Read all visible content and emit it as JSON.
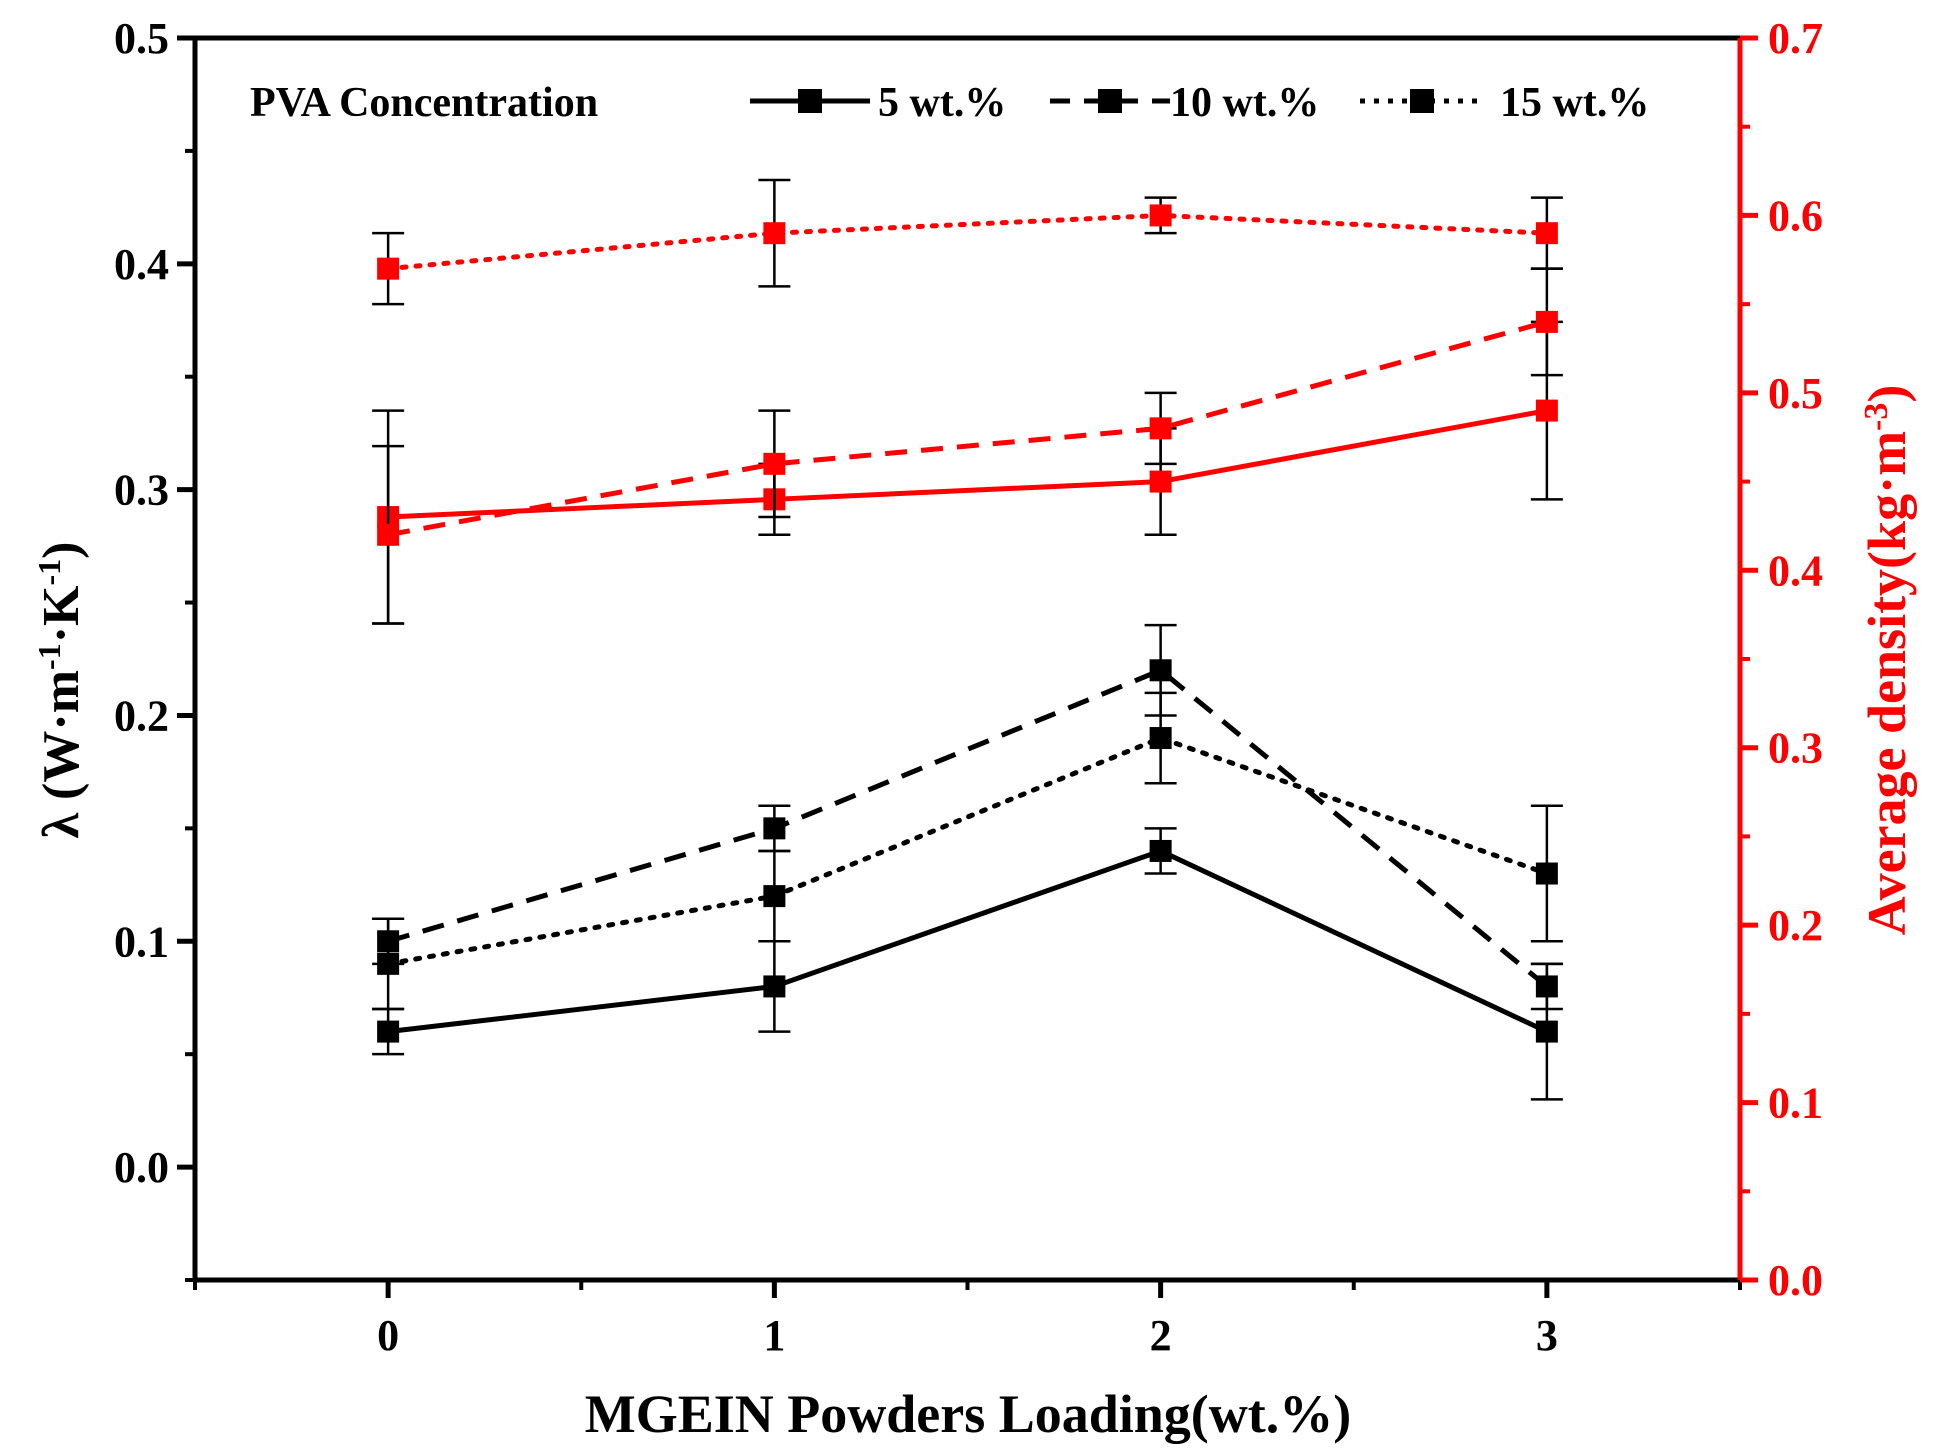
{
  "chart_data": {
    "type": "line",
    "xlabel": "MGEIN Powders Loading(wt.%)",
    "ylabel_left_parts": [
      "λ (W·m",
      "-1",
      "·K",
      "-1",
      ")"
    ],
    "ylabel_right_parts": [
      "Average density(kg·m",
      "-3",
      ")"
    ],
    "x_ticks": [
      0,
      1,
      2,
      3
    ],
    "x_tick_labels": [
      "0",
      "1",
      "2",
      "3"
    ],
    "xlim": [
      -0.5,
      3.5
    ],
    "y_left": {
      "lim": [
        -0.05,
        0.5
      ],
      "ticks": [
        0.0,
        0.1,
        0.2,
        0.3,
        0.4,
        0.5
      ],
      "tick_labels": [
        "0.0",
        "0.1",
        "0.2",
        "0.3",
        "0.4",
        "0.5"
      ]
    },
    "y_right": {
      "lim": [
        0.0,
        0.7
      ],
      "ticks": [
        0.0,
        0.1,
        0.2,
        0.3,
        0.4,
        0.5,
        0.6,
        0.7
      ],
      "tick_labels": [
        "0.0",
        "0.1",
        "0.2",
        "0.3",
        "0.4",
        "0.5",
        "0.6",
        "0.7"
      ]
    },
    "legend": {
      "title": "PVA Concentration",
      "position": "top",
      "entries": [
        {
          "label": "5 wt.%",
          "style": "solid"
        },
        {
          "label": "10 wt.%",
          "style": "dashed"
        },
        {
          "label": "15 wt.%",
          "style": "dotted"
        }
      ]
    },
    "series": [
      {
        "name": "λ 5 wt.%",
        "axis": "left",
        "color": "#000000",
        "style": "solid",
        "x": [
          0,
          1,
          2,
          3
        ],
        "values": [
          0.06,
          0.08,
          0.14,
          0.06
        ],
        "errors": [
          0.01,
          0.02,
          0.01,
          0.03
        ]
      },
      {
        "name": "λ 10 wt.%",
        "axis": "left",
        "color": "#000000",
        "style": "dashed",
        "x": [
          0,
          1,
          2,
          3
        ],
        "values": [
          0.1,
          0.15,
          0.22,
          0.08
        ],
        "errors": [
          0.01,
          0.01,
          0.02,
          0.01
        ]
      },
      {
        "name": "λ 15 wt.%",
        "axis": "left",
        "color": "#000000",
        "style": "dotted",
        "x": [
          0,
          1,
          2,
          3
        ],
        "values": [
          0.09,
          0.12,
          0.19,
          0.13
        ],
        "errors": [
          0.02,
          0.02,
          0.02,
          0.03
        ]
      },
      {
        "name": "Density 5 wt.%",
        "axis": "right",
        "color": "#ff0000",
        "style": "solid",
        "x": [
          0,
          1,
          2,
          3
        ],
        "values": [
          0.43,
          0.44,
          0.45,
          0.49
        ],
        "errors": [
          0.06,
          0.02,
          0.03,
          0.05
        ]
      },
      {
        "name": "Density 10 wt.%",
        "axis": "right",
        "color": "#ff0000",
        "style": "dashed",
        "x": [
          0,
          1,
          2,
          3
        ],
        "values": [
          0.42,
          0.46,
          0.48,
          0.54
        ],
        "errors": [
          0.05,
          0.03,
          0.02,
          0.03
        ]
      },
      {
        "name": "Density 15 wt.%",
        "axis": "right",
        "color": "#ff0000",
        "style": "dotted",
        "x": [
          0,
          1,
          2,
          3
        ],
        "values": [
          0.57,
          0.59,
          0.6,
          0.59
        ],
        "errors": [
          0.02,
          0.03,
          0.01,
          0.02
        ]
      }
    ]
  },
  "colors": {
    "left_axis": "#000000",
    "right_axis": "#ff0000"
  }
}
